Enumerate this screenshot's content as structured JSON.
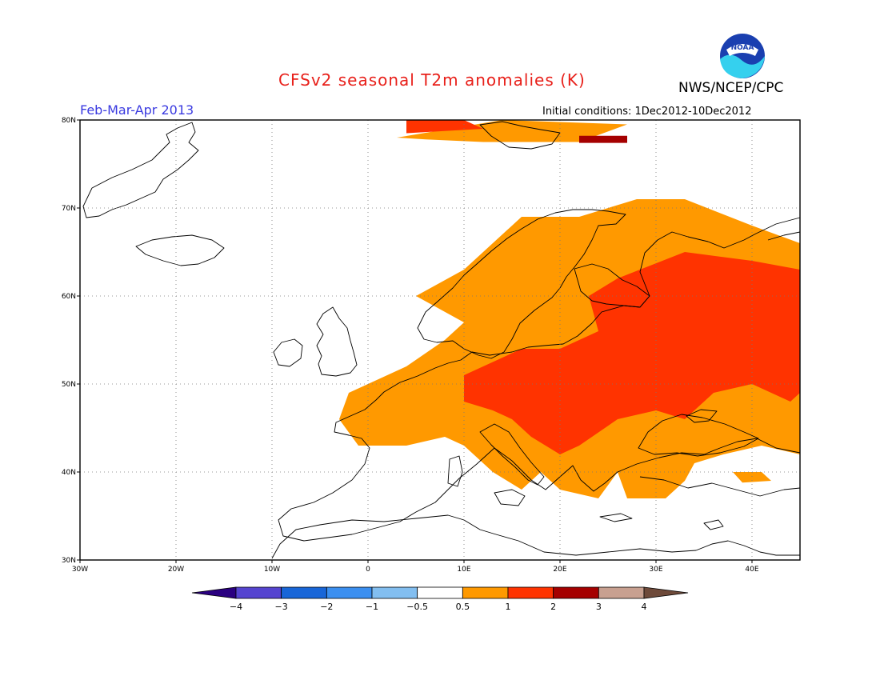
{
  "header": {
    "title": "CFSv2 seasonal T2m anomalies (K)",
    "organization": "NWS/NCEP/CPC",
    "logo_text": "NOAA",
    "season": "Feb-Mar-Apr 2013",
    "initial_conditions": "Initial conditions: 1Dec2012-10Dec2012"
  },
  "map": {
    "region": "Europe",
    "lon_range": [
      -30,
      45
    ],
    "lat_range": [
      30,
      80
    ],
    "gridlines": "dotted",
    "lon_ticks": [
      {
        "value": -30,
        "label": "30W"
      },
      {
        "value": -20,
        "label": "20W"
      },
      {
        "value": -10,
        "label": "10W"
      },
      {
        "value": 0,
        "label": "0"
      },
      {
        "value": 10,
        "label": "10E"
      },
      {
        "value": 20,
        "label": "20E"
      },
      {
        "value": 30,
        "label": "30E"
      },
      {
        "value": 40,
        "label": "40E"
      }
    ],
    "lat_ticks": [
      {
        "value": 80,
        "label": "80N"
      },
      {
        "value": 70,
        "label": "70N"
      },
      {
        "value": 60,
        "label": "60N"
      },
      {
        "value": 50,
        "label": "50N"
      },
      {
        "value": 40,
        "label": "40N"
      },
      {
        "value": 30,
        "label": "30N"
      }
    ],
    "anomaly_regions": [
      {
        "level": "0.5-1",
        "color": "#ff9900",
        "lonlat": [
          [
            -2,
            49
          ],
          [
            -3,
            46
          ],
          [
            -1,
            43
          ],
          [
            4,
            43
          ],
          [
            8,
            44
          ],
          [
            10,
            43
          ],
          [
            13,
            40
          ],
          [
            16,
            38
          ],
          [
            18,
            40
          ],
          [
            20,
            38
          ],
          [
            24,
            37
          ],
          [
            26,
            40
          ],
          [
            27,
            37
          ],
          [
            31,
            37
          ],
          [
            33,
            39
          ],
          [
            34,
            41
          ],
          [
            37,
            42
          ],
          [
            41,
            43
          ],
          [
            45,
            42
          ],
          [
            45,
            66
          ],
          [
            40,
            68
          ],
          [
            33,
            71
          ],
          [
            28,
            71
          ],
          [
            22,
            69
          ],
          [
            16,
            69
          ],
          [
            10,
            63
          ],
          [
            5,
            60
          ],
          [
            10,
            57
          ],
          [
            8,
            55
          ],
          [
            4,
            52
          ],
          [
            2,
            51
          ]
        ]
      },
      {
        "level": "0.5-1",
        "color": "#ff9900",
        "lonlat": [
          [
            3,
            78
          ],
          [
            14,
            80
          ],
          [
            27,
            79.5
          ],
          [
            22,
            77.5
          ],
          [
            12,
            77.5
          ],
          [
            6,
            77.8
          ]
        ]
      },
      {
        "level": "0.5-1",
        "color": "#ff9900",
        "lonlat": [
          [
            38,
            40
          ],
          [
            41,
            40
          ],
          [
            42,
            39
          ],
          [
            39,
            38.8
          ]
        ]
      },
      {
        "level": "1-2",
        "color": "#ff3300",
        "lonlat": [
          [
            10,
            51
          ],
          [
            10,
            48
          ],
          [
            13,
            47
          ],
          [
            15,
            46
          ],
          [
            17,
            44
          ],
          [
            20,
            42
          ],
          [
            22,
            43
          ],
          [
            26,
            46
          ],
          [
            30,
            47
          ],
          [
            33,
            46
          ],
          [
            36,
            49
          ],
          [
            40,
            50
          ],
          [
            44,
            48
          ],
          [
            45,
            49
          ],
          [
            45,
            63
          ],
          [
            40,
            64
          ],
          [
            33,
            65
          ],
          [
            26,
            62
          ],
          [
            23,
            60
          ],
          [
            24,
            56
          ],
          [
            20,
            54
          ],
          [
            16,
            54
          ],
          [
            12,
            52
          ]
        ]
      },
      {
        "level": "1-2",
        "color": "#ff3300",
        "lonlat": [
          [
            4,
            80
          ],
          [
            10,
            80
          ],
          [
            12,
            79
          ],
          [
            4,
            78.5
          ]
        ]
      },
      {
        "level": "2-3",
        "color": "#a50000",
        "lonlat": [
          [
            22,
            78.2
          ],
          [
            27,
            78.2
          ],
          [
            27,
            77.4
          ],
          [
            22,
            77.4
          ]
        ]
      }
    ]
  },
  "legend": {
    "colors": [
      "#2a0080",
      "#5544d0",
      "#1866d8",
      "#3b8ff0",
      "#82bef0",
      "#ffffff",
      "#ff9900",
      "#ff3300",
      "#a50000",
      "#c8a090",
      "#6e4a3a"
    ],
    "labels": [
      "-4",
      "-3",
      "-2",
      "-1",
      "-0.5",
      "0.5",
      "1",
      "2",
      "3",
      "4"
    ]
  }
}
